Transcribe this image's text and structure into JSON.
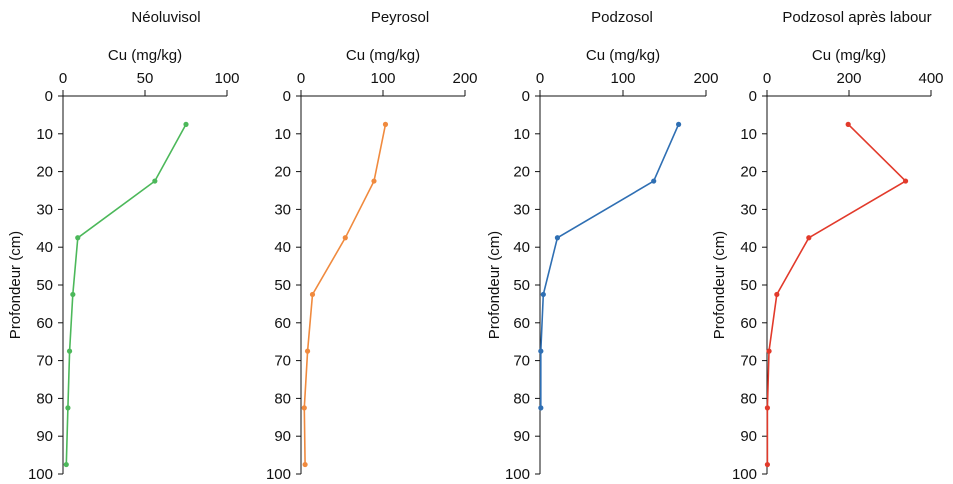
{
  "chart_data": [
    {
      "type": "line",
      "title": "Néoluvisol",
      "xlabel": "Cu (mg/kg)",
      "ylabel": "Profondeur (cm)",
      "xlim": [
        0,
        100
      ],
      "ylim": [
        0,
        100
      ],
      "xticks": [
        0,
        50,
        100
      ],
      "yticks": [
        0,
        10,
        20,
        30,
        40,
        50,
        60,
        70,
        80,
        90,
        100
      ],
      "show_ylabel": true,
      "color": "#4cb85a",
      "series": [
        {
          "x": [
            75,
            56,
            9,
            6,
            4,
            3,
            2
          ],
          "y": [
            7.5,
            22.5,
            37.5,
            52.5,
            67.5,
            82.5,
            97.5
          ]
        }
      ]
    },
    {
      "type": "line",
      "title": "Peyrosol",
      "xlabel": "Cu (mg/kg)",
      "ylabel": "",
      "xlim": [
        0,
        200
      ],
      "ylim": [
        0,
        100
      ],
      "xticks": [
        0,
        100,
        200
      ],
      "yticks": [
        0,
        10,
        20,
        30,
        40,
        50,
        60,
        70,
        80,
        90,
        100
      ],
      "show_ylabel": false,
      "color": "#f08a3e",
      "series": [
        {
          "x": [
            103,
            89,
            54,
            14,
            8,
            4,
            5
          ],
          "y": [
            7.5,
            22.5,
            37.5,
            52.5,
            67.5,
            82.5,
            97.5
          ]
        }
      ]
    },
    {
      "type": "line",
      "title": "Podzosol",
      "xlabel": "Cu (mg/kg)",
      "ylabel": "Profondeur (cm)",
      "xlim": [
        0,
        200
      ],
      "ylim": [
        0,
        100
      ],
      "xticks": [
        0,
        100,
        200
      ],
      "yticks": [
        0,
        10,
        20,
        30,
        40,
        50,
        60,
        70,
        80,
        90,
        100
      ],
      "show_ylabel": true,
      "color": "#2f6fb3",
      "series": [
        {
          "x": [
            167,
            137,
            21,
            4,
            1,
            1
          ],
          "y": [
            7.5,
            22.5,
            37.5,
            52.5,
            67.5,
            82.5
          ]
        }
      ]
    },
    {
      "type": "line",
      "title": "Podzosol après labour",
      "xlabel": "Cu (mg/kg)",
      "ylabel": "Profondeur (cm)",
      "xlim": [
        0,
        400
      ],
      "ylim": [
        0,
        100
      ],
      "xticks": [
        0,
        200,
        400
      ],
      "yticks": [
        0,
        10,
        20,
        30,
        40,
        50,
        60,
        70,
        80,
        90,
        100
      ],
      "show_ylabel": true,
      "color": "#e23a2b",
      "series": [
        {
          "x": [
            198,
            338,
            102,
            24,
            5,
            1,
            1
          ],
          "y": [
            7.5,
            22.5,
            37.5,
            52.5,
            67.5,
            82.5,
            97.5
          ]
        }
      ]
    }
  ]
}
